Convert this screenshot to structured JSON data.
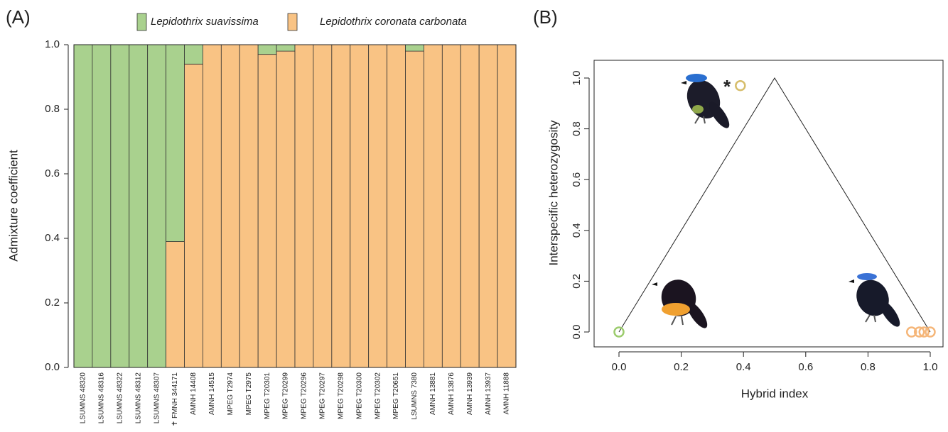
{
  "chart_data": [
    {
      "type": "bar",
      "stacked": true,
      "panel_label": "(A)",
      "y_label": "Admixture coefficient",
      "categories": [
        "LSUMNS 48320",
        "LSUMNS 48316",
        "LSUMNS 48322",
        "LSUMNS 48312",
        "LSUMNS 48307",
        "✝ FMNH 344171",
        "AMNH 14408",
        "AMNH 14515",
        "MPEG T2974",
        "MPEG T2975",
        "MPEG T20301",
        "MPEG T20299",
        "MPEG T20296",
        "MPEG T20297",
        "MPEG T20298",
        "MPEG T20300",
        "MPEG T20302",
        "MPEG T20651",
        "LSUMNS 7380",
        "AMNH 13881",
        "AMNH 13876",
        "AMNH 13939",
        "AMNH 13937",
        "AMNH 11888"
      ],
      "series": [
        {
          "name": "Lepidothrix suavissima",
          "color": "#a9d18e",
          "values": [
            1,
            1,
            1,
            1,
            1,
            0.61,
            0.06,
            0,
            0,
            0,
            0.03,
            0.02,
            0,
            0,
            0,
            0,
            0,
            0,
            0.02,
            0,
            0,
            0,
            0,
            0
          ]
        },
        {
          "name": "Lepidothrix coronata carbonata",
          "color": "#f9c384",
          "values": [
            0,
            0,
            0,
            0,
            0,
            0.39,
            0.94,
            1,
            1,
            1,
            0.97,
            0.98,
            1,
            1,
            1,
            1,
            1,
            1,
            0.98,
            1,
            1,
            1,
            1,
            1
          ]
        }
      ],
      "ylim": [
        0,
        1
      ],
      "yticks": [
        {
          "value": 0,
          "label": "0.0"
        },
        0.2,
        0.4,
        0.6,
        0.8,
        {
          "value": 1,
          "label": "1.0"
        }
      ]
    },
    {
      "type": "scatter",
      "panel_label": "(B)",
      "x_label": "Hybrid index",
      "y_label": "Interspecific heterozygosity",
      "points": {
        "x": [
          0,
          0.39,
          0.94,
          0.965,
          0.98,
          1.0
        ],
        "y": [
          0,
          0.97,
          0,
          0,
          0,
          0
        ],
        "colors": [
          "#9ccc6e",
          "#d6bd6a",
          "#f5b679",
          "#f5b679",
          "#f5b679",
          "#f5b679"
        ]
      },
      "boundary": {
        "x": [
          0,
          0.5,
          1
        ],
        "y": [
          0,
          1,
          0
        ]
      },
      "annotation": "*",
      "xlim": [
        0,
        1
      ],
      "ylim": [
        0,
        1
      ],
      "xticks": [
        {
          "value": 0,
          "label": "0.0"
        },
        0.2,
        0.4,
        0.6,
        0.8,
        {
          "value": 1,
          "label": "1.0"
        }
      ],
      "yticks": [
        {
          "value": 0,
          "label": "0.0"
        },
        0.2,
        0.4,
        0.6,
        0.8,
        {
          "value": 1,
          "label": "1.0"
        }
      ]
    }
  ]
}
